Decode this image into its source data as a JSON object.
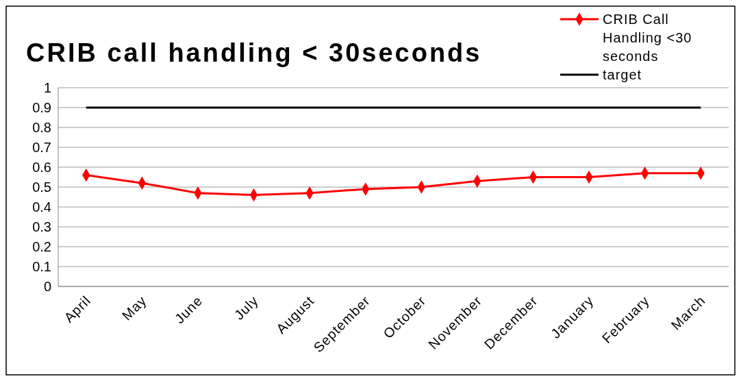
{
  "chart_data": {
    "type": "line",
    "title": "CRIB call handling < 30seconds",
    "categories": [
      "April",
      "May",
      "June",
      "July",
      "August",
      "September",
      "October",
      "November",
      "December",
      "January",
      "February",
      "March"
    ],
    "series": [
      {
        "name": "CRIB Call Handling <30 seconds",
        "color": "#ff0000",
        "marker": "diamond",
        "values": [
          0.56,
          0.52,
          0.47,
          0.46,
          0.47,
          0.49,
          0.5,
          0.53,
          0.55,
          0.55,
          0.57,
          0.57
        ]
      },
      {
        "name": "target",
        "color": "#000000",
        "marker": "none",
        "values": [
          0.9,
          0.9,
          0.9,
          0.9,
          0.9,
          0.9,
          0.9,
          0.9,
          0.9,
          0.9,
          0.9,
          0.9
        ]
      }
    ],
    "ylim": [
      0,
      1
    ],
    "yticks": [
      0,
      0.1,
      0.2,
      0.3,
      0.4,
      0.5,
      0.6,
      0.7,
      0.8,
      0.9,
      1
    ],
    "grid": "y",
    "legend": "top right"
  }
}
